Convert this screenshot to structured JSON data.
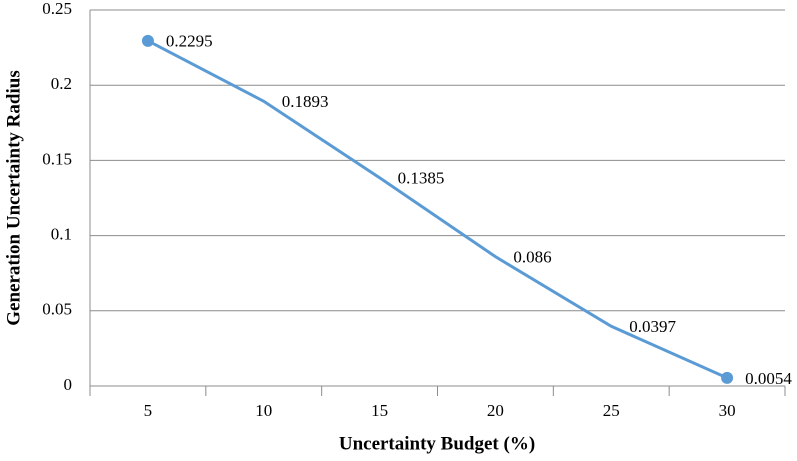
{
  "chart_data": {
    "type": "line",
    "categories": [
      "5",
      "10",
      "15",
      "20",
      "25",
      "30"
    ],
    "values": [
      0.2295,
      0.1893,
      0.1385,
      0.086,
      0.0397,
      0.0054
    ],
    "color": "#5b9bd5",
    "ylim": [
      0,
      0.25
    ],
    "yticks": [
      0,
      0.05,
      0.1,
      0.15,
      0.2,
      0.25
    ],
    "grid": true,
    "x_label": "Uncertainty Budget (%)",
    "y_label": "Generation Uncertainty Radius",
    "data_labels": true
  }
}
